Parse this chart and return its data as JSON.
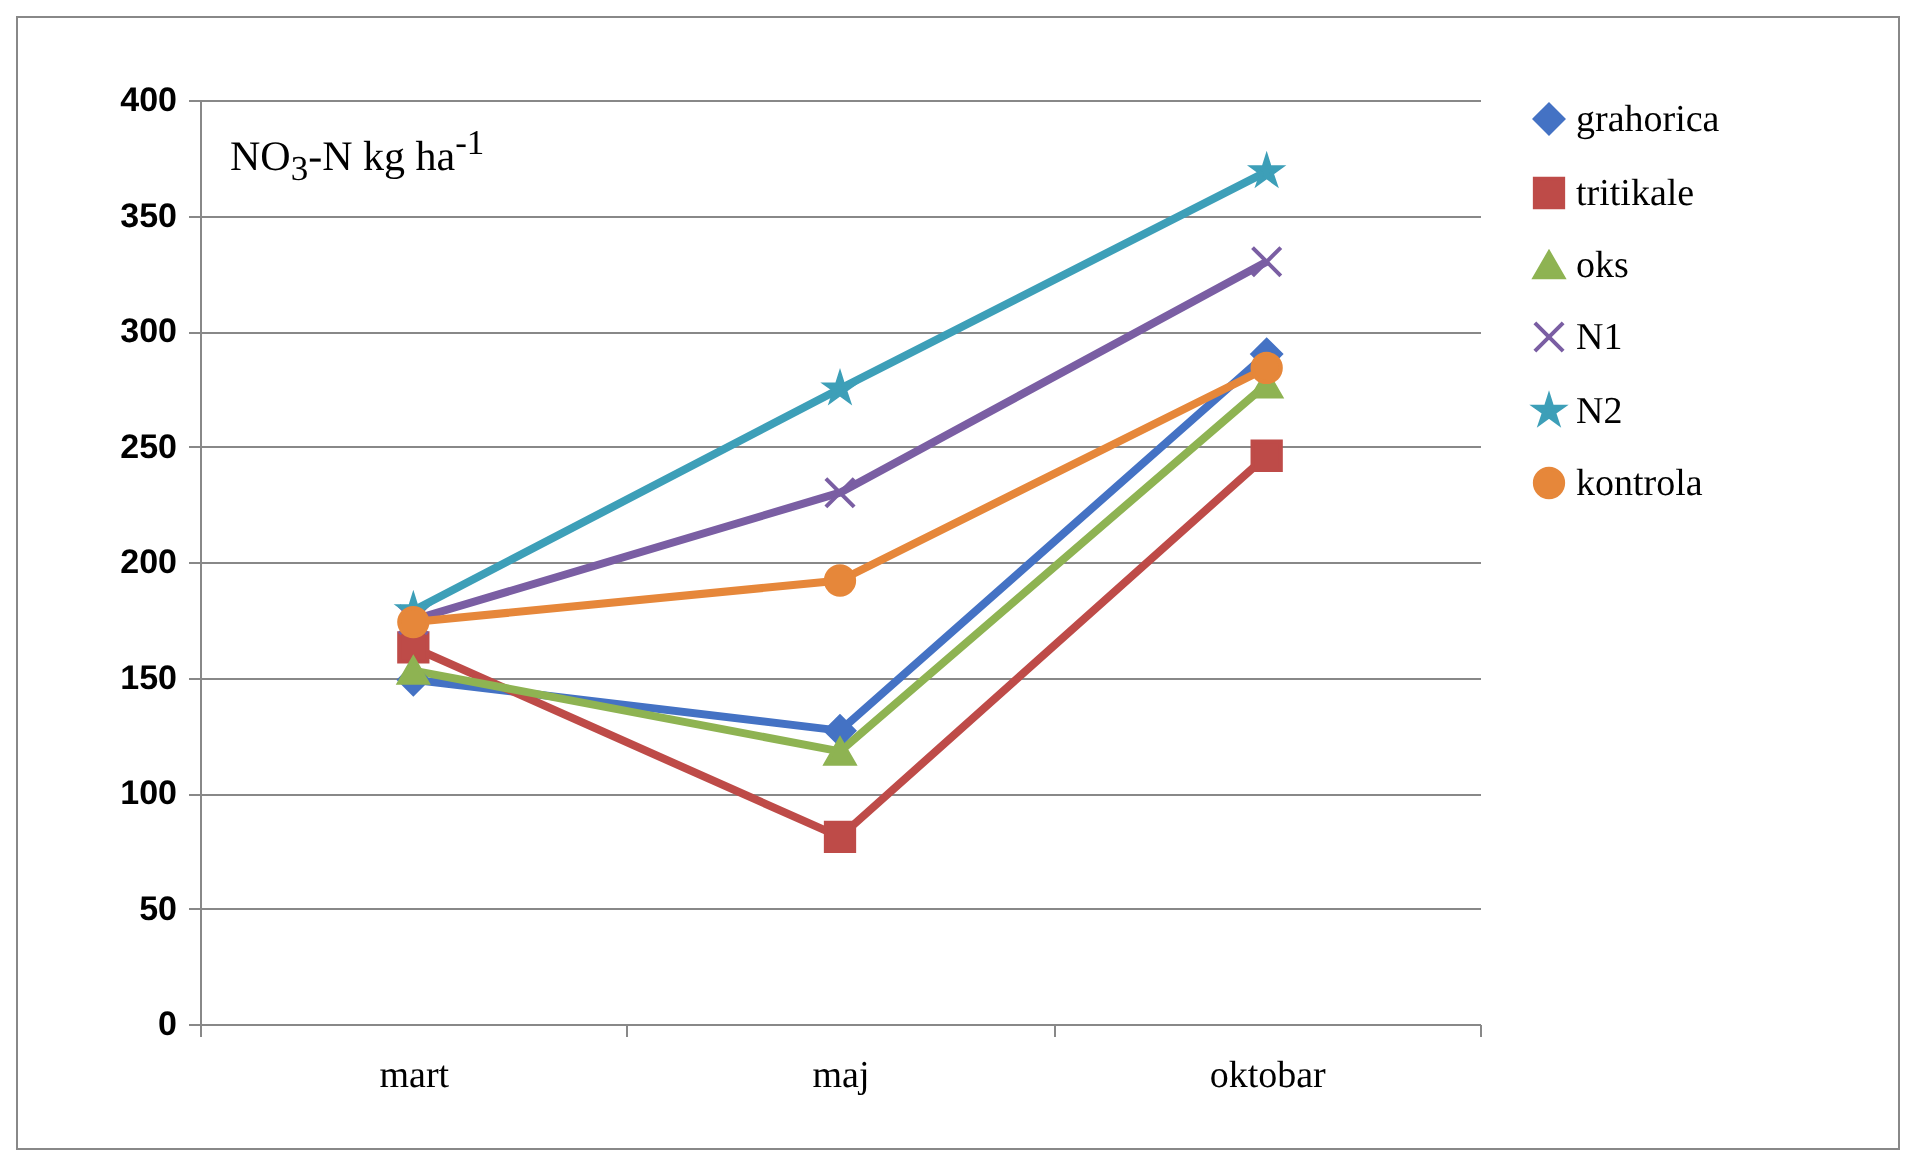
{
  "chart_data": {
    "type": "line",
    "categories": [
      "mart",
      "maj",
      "oktobar"
    ],
    "series": [
      {
        "name": "grahorica",
        "color": "#4472c4",
        "marker": "diamond",
        "values": [
          149,
          127,
          290
        ]
      },
      {
        "name": "tritikale",
        "color": "#be4b48",
        "marker": "square",
        "values": [
          163,
          81,
          246
        ]
      },
      {
        "name": "oks",
        "color": "#8eb352",
        "marker": "triangle",
        "values": [
          153,
          118,
          277
        ]
      },
      {
        "name": "N1",
        "color": "#7a5ea3",
        "marker": "cross",
        "values": [
          175,
          230,
          330
        ]
      },
      {
        "name": "N2",
        "color": "#3d9fb8",
        "marker": "star",
        "values": [
          179,
          275,
          369
        ]
      },
      {
        "name": "kontrola",
        "color": "#e6873a",
        "marker": "circle",
        "values": [
          174,
          192,
          284
        ]
      }
    ],
    "ylim": [
      0,
      400
    ],
    "yticks": [
      0,
      50,
      100,
      150,
      200,
      250,
      300,
      350,
      400
    ],
    "grid": "y",
    "legend": "right",
    "annotations": [
      "NO$_{3}$-N kg ha$^{-1}$"
    ]
  }
}
